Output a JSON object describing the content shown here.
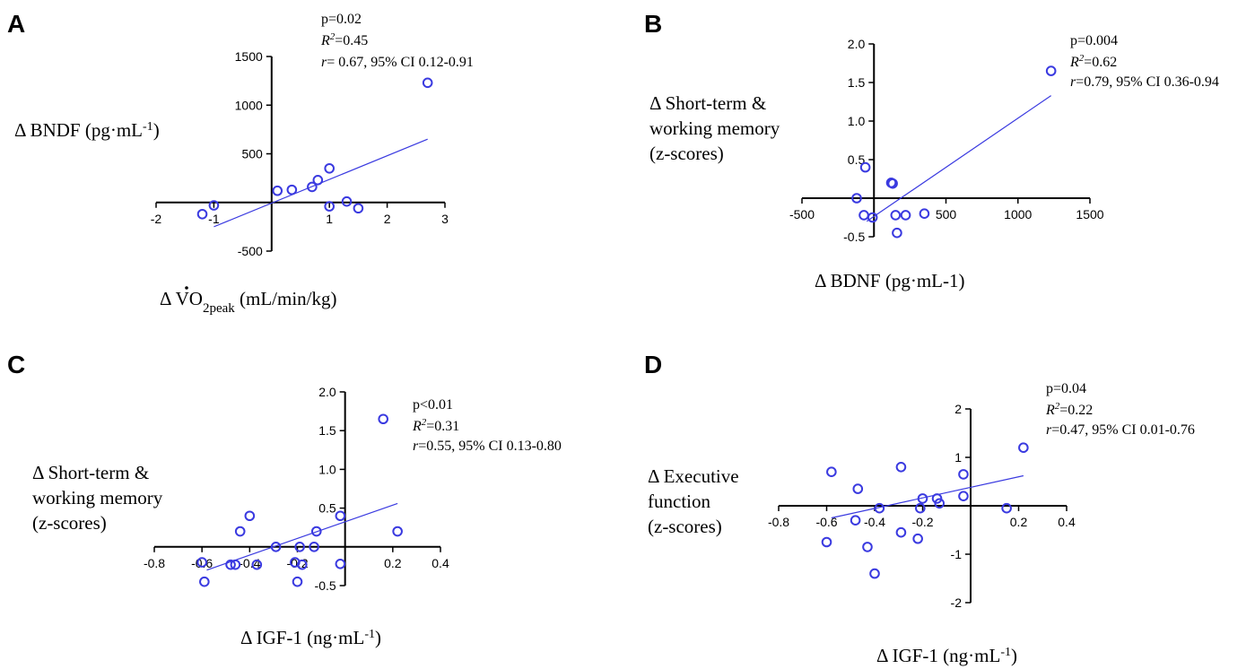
{
  "chart_data": [
    {
      "type": "scatter",
      "panel": "A",
      "stats": {
        "p": "p=0.02",
        "r2_label": "R",
        "r2_sup": "2",
        "r2_value": "=0.45",
        "r_label": "r",
        "r_value": "= 0.67, 95% CI 0.12-0.91"
      },
      "ylabel": {
        "main": "Δ BNDF (pg·mL",
        "sup": "-1",
        "end": ")"
      },
      "xlabel": {
        "main": "Δ VO",
        "sub": "2peak",
        "end": " (mL/min/kg)",
        "dot_accent": true
      },
      "xlim": [
        -2,
        3
      ],
      "ylim": [
        -500,
        1500
      ],
      "x_ticks": [
        -2,
        -1,
        0,
        1,
        2,
        3
      ],
      "x_tick_labels": [
        "-2",
        "-1",
        "",
        "1",
        "2",
        "3"
      ],
      "y_ticks": [
        -500,
        0,
        500,
        1000,
        1500
      ],
      "y_tick_labels": [
        "-500",
        "",
        "500",
        "1000",
        "1500"
      ],
      "points": [
        {
          "x": -1.2,
          "y": -120
        },
        {
          "x": -1.0,
          "y": -30
        },
        {
          "x": 0.1,
          "y": 120
        },
        {
          "x": 0.35,
          "y": 130
        },
        {
          "x": 0.7,
          "y": 160
        },
        {
          "x": 0.8,
          "y": 230
        },
        {
          "x": 1.0,
          "y": 350
        },
        {
          "x": 1.0,
          "y": -40
        },
        {
          "x": 1.3,
          "y": 10
        },
        {
          "x": 1.5,
          "y": -60
        },
        {
          "x": 2.7,
          "y": 1230
        }
      ],
      "fit": {
        "x": [
          -1.0,
          2.7
        ],
        "y": [
          -250,
          650
        ]
      }
    },
    {
      "type": "scatter",
      "panel": "B",
      "stats": {
        "p": "p=0.004",
        "r2_label": "R",
        "r2_sup": "2",
        "r2_value": "=0.62",
        "r_label": "r",
        "r_value": "=0.79, 95% CI  0.36-0.94"
      },
      "ylabel": {
        "lines": [
          "Δ Short-term &",
          "working memory",
          "(z-scores)"
        ]
      },
      "xlabel": {
        "main": "Δ BDNF (pg·mL-1)"
      },
      "xlim": [
        -500,
        1500
      ],
      "ylim": [
        -0.5,
        2.0
      ],
      "x_ticks": [
        -500,
        0,
        500,
        1000,
        1500
      ],
      "x_tick_labels": [
        "-500",
        "",
        "500",
        "1000",
        "1500"
      ],
      "y_ticks": [
        -0.5,
        0,
        0.5,
        1.0,
        1.5,
        2.0
      ],
      "y_tick_labels": [
        "-0.5",
        "",
        "0.5",
        "1.0",
        "1.5",
        "2.0"
      ],
      "points": [
        {
          "x": -120,
          "y": 0.0
        },
        {
          "x": -60,
          "y": 0.4
        },
        {
          "x": -70,
          "y": -0.22
        },
        {
          "x": -10,
          "y": -0.25
        },
        {
          "x": 120,
          "y": 0.2
        },
        {
          "x": 130,
          "y": 0.19
        },
        {
          "x": 150,
          "y": -0.22
        },
        {
          "x": 160,
          "y": -0.45
        },
        {
          "x": 220,
          "y": -0.22
        },
        {
          "x": 350,
          "y": -0.2
        },
        {
          "x": 1230,
          "y": 1.65
        }
      ],
      "fit": {
        "x": [
          -50,
          1230
        ],
        "y": [
          -0.3,
          1.33
        ]
      }
    },
    {
      "type": "scatter",
      "panel": "C",
      "stats": {
        "p": "p<0.01",
        "r2_label": "R",
        "r2_sup": "2",
        "r2_value": "=0.31",
        "r_label": "r",
        "r_value": "=0.55, 95% CI 0.13-0.80"
      },
      "ylabel": {
        "lines": [
          "Δ Short-term &",
          "working memory",
          "(z-scores)"
        ]
      },
      "xlabel": {
        "main": "Δ IGF-1 (ng·mL",
        "sup": "-1",
        "end": ")"
      },
      "xlim": [
        -0.8,
        0.4
      ],
      "ylim": [
        -0.5,
        2.0
      ],
      "x_ticks": [
        -0.8,
        -0.6,
        -0.4,
        -0.2,
        0,
        0.2,
        0.4
      ],
      "x_tick_labels": [
        "-0.8",
        "-0.6",
        "-0.4",
        "-0.2",
        "",
        "0.2",
        "0.4"
      ],
      "y_ticks": [
        -0.5,
        0,
        0.5,
        1.0,
        1.5,
        2.0
      ],
      "y_tick_labels": [
        "-0.5",
        "",
        "0.5",
        "1.0",
        "1.5",
        "2.0"
      ],
      "points": [
        {
          "x": -0.6,
          "y": -0.2
        },
        {
          "x": -0.59,
          "y": -0.45
        },
        {
          "x": -0.48,
          "y": -0.23
        },
        {
          "x": -0.46,
          "y": -0.23
        },
        {
          "x": -0.44,
          "y": 0.2
        },
        {
          "x": -0.4,
          "y": 0.4
        },
        {
          "x": -0.37,
          "y": -0.23
        },
        {
          "x": -0.29,
          "y": 0.0
        },
        {
          "x": -0.21,
          "y": -0.2
        },
        {
          "x": -0.2,
          "y": -0.45
        },
        {
          "x": -0.19,
          "y": 0.0
        },
        {
          "x": -0.18,
          "y": -0.23
        },
        {
          "x": -0.13,
          "y": 0.0
        },
        {
          "x": -0.12,
          "y": 0.2
        },
        {
          "x": -0.02,
          "y": 0.4
        },
        {
          "x": -0.02,
          "y": -0.22
        },
        {
          "x": 0.16,
          "y": 1.65
        },
        {
          "x": 0.22,
          "y": 0.2
        }
      ],
      "fit": {
        "x": [
          -0.58,
          0.22
        ],
        "y": [
          -0.3,
          0.56
        ]
      }
    },
    {
      "type": "scatter",
      "panel": "D",
      "stats": {
        "p": "p=0.04",
        "r2_label": "R",
        "r2_sup": "2",
        "r2_value": "=0.22",
        "r_label": "r",
        "r_value": "=0.47, 95% CI 0.01-0.76"
      },
      "ylabel": {
        "lines": [
          "Δ Executive",
          "function",
          "(z-scores)"
        ]
      },
      "xlabel": {
        "main": "Δ IGF-1 (ng·mL",
        "sup": "-1",
        "end": ")"
      },
      "xlim": [
        -0.8,
        0.4
      ],
      "ylim": [
        -2,
        2
      ],
      "x_ticks": [
        -0.8,
        -0.6,
        -0.4,
        -0.2,
        0,
        0.2,
        0.4
      ],
      "x_tick_labels": [
        "-0.8",
        "-0.6",
        "-0.4",
        "-0.2",
        "",
        "0.2",
        "0.4"
      ],
      "y_ticks": [
        -2,
        -1,
        0,
        1,
        2
      ],
      "y_tick_labels": [
        "-2",
        "-1",
        "",
        "1",
        "2"
      ],
      "points": [
        {
          "x": -0.58,
          "y": 0.7
        },
        {
          "x": -0.6,
          "y": -0.75
        },
        {
          "x": -0.47,
          "y": 0.35
        },
        {
          "x": -0.48,
          "y": -0.3
        },
        {
          "x": -0.38,
          "y": -0.05
        },
        {
          "x": -0.43,
          "y": -0.85
        },
        {
          "x": -0.4,
          "y": -1.4
        },
        {
          "x": -0.29,
          "y": 0.8
        },
        {
          "x": -0.29,
          "y": -0.55
        },
        {
          "x": -0.2,
          "y": 0.15
        },
        {
          "x": -0.21,
          "y": -0.05
        },
        {
          "x": -0.22,
          "y": -0.68
        },
        {
          "x": -0.14,
          "y": 0.15
        },
        {
          "x": -0.13,
          "y": 0.05
        },
        {
          "x": -0.03,
          "y": 0.65
        },
        {
          "x": -0.03,
          "y": 0.2
        },
        {
          "x": 0.15,
          "y": -0.05
        },
        {
          "x": 0.22,
          "y": 1.2
        }
      ],
      "fit": {
        "x": [
          -0.58,
          0.22
        ],
        "y": [
          -0.25,
          0.62
        ]
      }
    }
  ],
  "colors": {
    "marker": "#3a3ae0",
    "fit_line": "#3a3ae0",
    "axis": "#000000"
  }
}
